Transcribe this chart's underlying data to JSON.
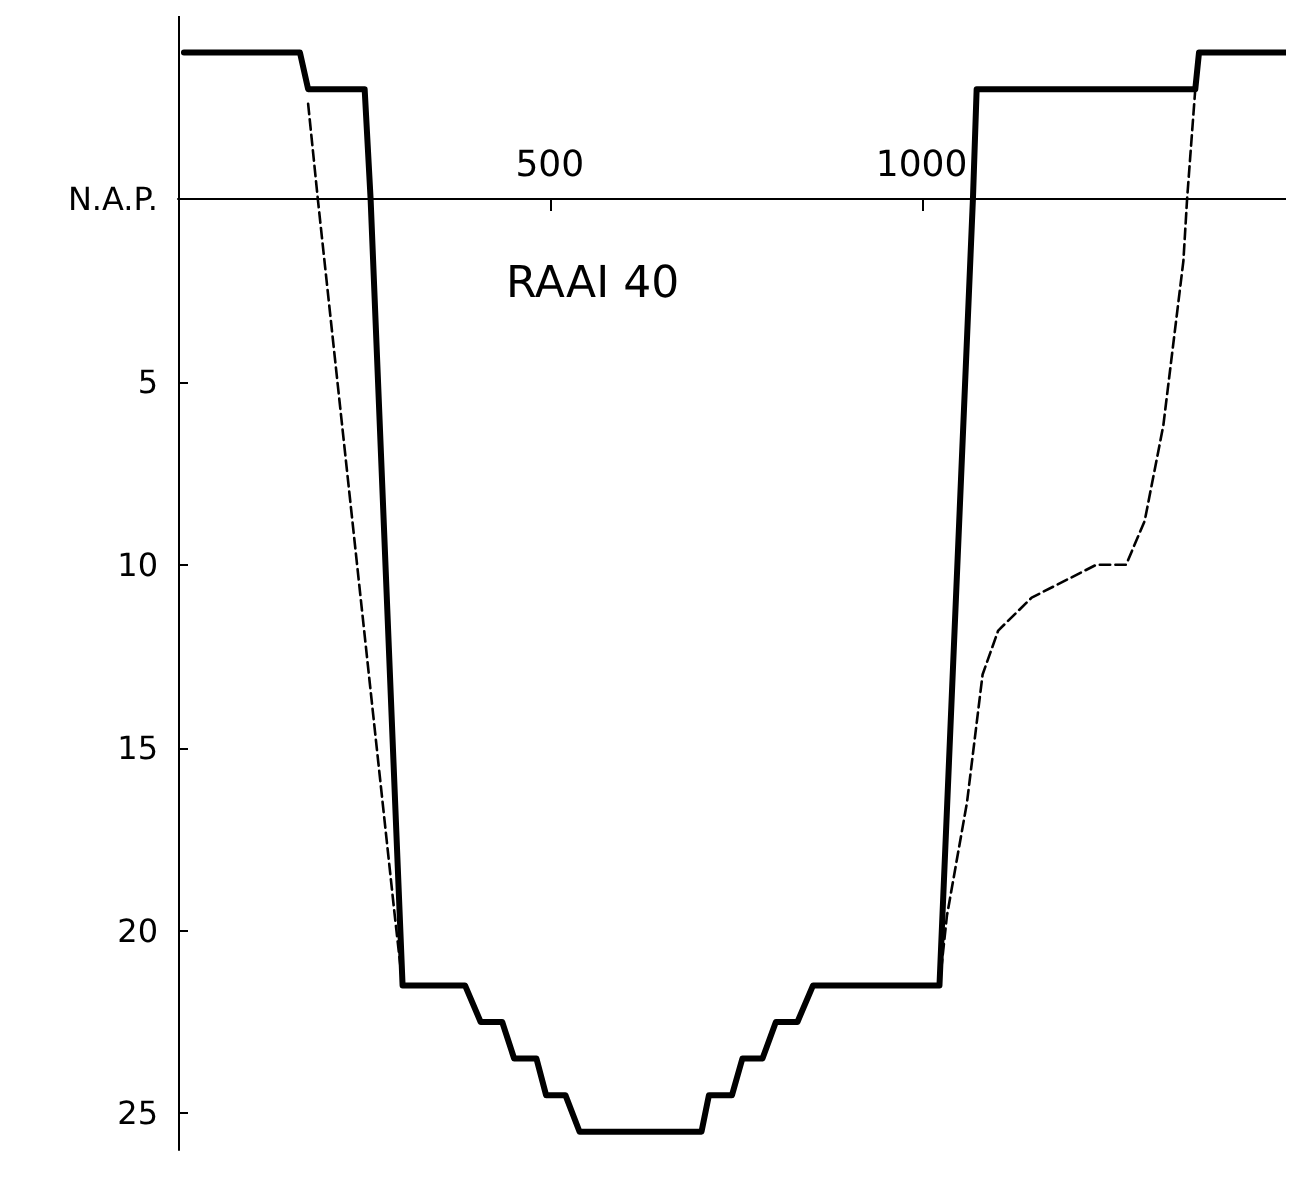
{
  "chart_data": {
    "type": "line",
    "title": "RAAI 40",
    "xlim": [
      0,
      1490
    ],
    "xticks": [
      500,
      1000
    ],
    "ylim": [
      26,
      -5
    ],
    "yticks": [
      {
        "value": 0,
        "label": "N.A.P."
      },
      5,
      10,
      15,
      20,
      25
    ],
    "marker": "none",
    "series": [
      {
        "color": "#000000",
        "line_style": "solid",
        "x": [
          8,
          164,
          175,
          251,
          259,
          302,
          386,
          407,
          436,
          452,
          482,
          495,
          521,
          540,
          704,
          714,
          745,
          759,
          786,
          804,
          833,
          854,
          1024,
          1069,
          1074,
          1368,
          1373,
          1490
        ],
        "values": [
          -4,
          -4,
          -3,
          -3,
          0,
          21.5,
          21.5,
          22.5,
          22.5,
          23.5,
          23.5,
          24.5,
          24.5,
          25.5,
          25.5,
          24.5,
          24.5,
          23.5,
          23.5,
          22.5,
          22.5,
          21.5,
          21.5,
          0,
          -3,
          -3,
          -4,
          -4
        ]
      },
      {
        "color": "#000000",
        "line_style": "dashed",
        "x": [
          175,
          188,
          291,
          302,
          700,
          1024,
          1034,
          1061,
          1082,
          1103,
          1148,
          1235,
          1275,
          1300,
          1325,
          1352,
          1357,
          1368
        ],
        "values": [
          -2.6,
          0,
          19.5,
          21.5,
          null,
          21.5,
          19.6,
          16.5,
          13,
          11.8,
          10.9,
          10,
          10,
          8.8,
          6.2,
          1.7,
          0,
          -3
        ]
      }
    ]
  }
}
